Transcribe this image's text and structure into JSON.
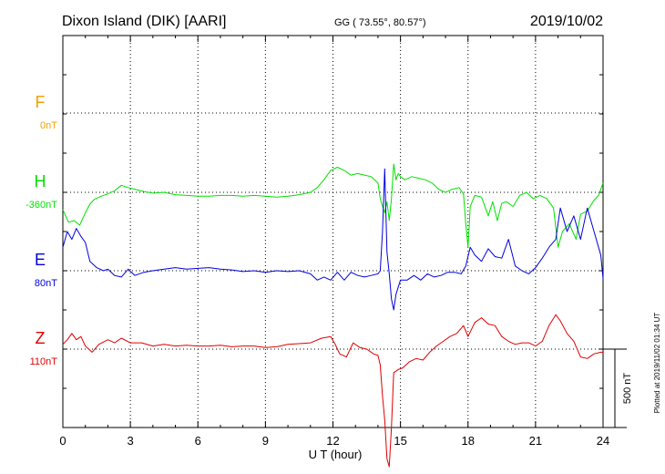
{
  "header": {
    "station": "Dixon Island (DIK)  [AARI]",
    "coords": "GG ( 73.55°,  80.57°)",
    "date": "2019/10/02"
  },
  "footer": {
    "xlabel": "U T (hour)",
    "plotted": "Plotted at 2019/11/02 01:34 UT"
  },
  "scale": {
    "label": "500 nT",
    "value_nT": 500
  },
  "chart_data": {
    "type": "line",
    "title": "Dixon Island (DIK)  [AARI]",
    "xlabel": "U T (hour)",
    "ylabel": "",
    "xlim": [
      0,
      24
    ],
    "xticks": [
      "0",
      "3",
      "6",
      "9",
      "12",
      "15",
      "18",
      "21",
      "24"
    ],
    "grid": true,
    "series": [
      {
        "name": "F",
        "baseline_label": "0nT",
        "color": "#f0a000",
        "x": [],
        "y": []
      },
      {
        "name": "H",
        "baseline_label": "-360nT",
        "color": "#00e000",
        "x": [
          0,
          0.25,
          0.5,
          0.75,
          1,
          1.2,
          1.4,
          1.7,
          2,
          2.3,
          2.6,
          2.9,
          3.2,
          3.6,
          4,
          4.5,
          5,
          5.5,
          6,
          6.5,
          7,
          7.5,
          8,
          8.5,
          9,
          9.5,
          10,
          10.5,
          11,
          11.3,
          11.6,
          11.9,
          12.2,
          12.5,
          12.8,
          13.1,
          13.4,
          13.7,
          14,
          14.1,
          14.2,
          14.3,
          14.4,
          14.5,
          14.6,
          14.7,
          14.8,
          14.9,
          15,
          15.2,
          15.5,
          15.8,
          16.1,
          16.4,
          16.7,
          17,
          17.3,
          17.6,
          17.8,
          17.9,
          18,
          18.1,
          18.3,
          18.6,
          18.9,
          19.1,
          19.3,
          19.5,
          19.7,
          20,
          20.3,
          20.6,
          20.9,
          21.2,
          21.5,
          21.8,
          22,
          22.2,
          22.5,
          22.8,
          23,
          23.3,
          23.6,
          23.8,
          24
        ],
        "y": [
          -110,
          -190,
          -180,
          -210,
          -130,
          -75,
          -45,
          -25,
          -10,
          10,
          45,
          30,
          20,
          5,
          -5,
          0,
          -15,
          -20,
          -25,
          -25,
          -20,
          -20,
          -25,
          -20,
          -25,
          -30,
          -25,
          -15,
          0,
          30,
          80,
          140,
          160,
          140,
          110,
          120,
          110,
          100,
          60,
          -40,
          -90,
          -130,
          -60,
          -180,
          -40,
          180,
          80,
          120,
          100,
          80,
          100,
          90,
          80,
          60,
          20,
          0,
          20,
          30,
          -10,
          -200,
          -350,
          -90,
          -20,
          -30,
          -150,
          -60,
          -180,
          -70,
          -60,
          -90,
          -20,
          0,
          -40,
          -20,
          -40,
          -100,
          -350,
          -250,
          -200,
          -300,
          -140,
          -120,
          -50,
          -20,
          60
        ],
        "ylim": [
          -700,
          700
        ]
      },
      {
        "name": "E",
        "baseline_label": "80nT",
        "color": "#0000e0",
        "x": [
          0,
          0.2,
          0.4,
          0.6,
          0.8,
          1,
          1.2,
          1.5,
          1.8,
          2,
          2.3,
          2.6,
          2.9,
          3.2,
          3.6,
          4,
          4.5,
          5,
          5.5,
          6,
          6.5,
          7,
          7.5,
          8,
          8.5,
          9,
          9.5,
          10,
          10.5,
          11,
          11.3,
          11.6,
          11.9,
          12.2,
          12.5,
          12.8,
          13.1,
          13.4,
          13.7,
          14,
          14.1,
          14.2,
          14.3,
          14.4,
          14.5,
          14.6,
          14.7,
          14.8,
          15,
          15.3,
          15.6,
          15.9,
          16.2,
          16.5,
          16.8,
          17.1,
          17.4,
          17.7,
          17.9,
          18.1,
          18.3,
          18.6,
          18.9,
          19.2,
          19.5,
          19.8,
          20.1,
          20.4,
          20.7,
          21,
          21.3,
          21.6,
          21.9,
          22.1,
          22.4,
          22.7,
          23,
          23.3,
          23.6,
          23.9,
          24
        ],
        "y": [
          150,
          250,
          200,
          270,
          220,
          180,
          60,
          20,
          0,
          10,
          -30,
          -40,
          10,
          -30,
          -10,
          0,
          10,
          20,
          10,
          15,
          20,
          10,
          5,
          -5,
          0,
          -10,
          0,
          -5,
          0,
          -20,
          -60,
          -40,
          -60,
          -10,
          -60,
          -10,
          -30,
          -40,
          -30,
          -20,
          0,
          250,
          650,
          120,
          -20,
          -180,
          -250,
          -150,
          -60,
          -60,
          -30,
          -60,
          -20,
          -40,
          -30,
          -10,
          -10,
          -20,
          30,
          150,
          100,
          60,
          140,
          90,
          80,
          200,
          30,
          0,
          -20,
          20,
          80,
          150,
          200,
          400,
          250,
          350,
          200,
          400,
          250,
          100,
          -50
        ],
        "ylim": [
          -700,
          700
        ]
      },
      {
        "name": "Z",
        "baseline_label": "110nT",
        "color": "#e00000",
        "x": [
          0,
          0.2,
          0.4,
          0.6,
          0.8,
          1,
          1.3,
          1.6,
          2,
          2.3,
          2.6,
          3,
          3.5,
          4,
          4.5,
          5,
          5.5,
          6,
          6.5,
          7,
          7.5,
          8,
          8.5,
          9,
          9.5,
          10,
          10.5,
          11,
          11.5,
          11.9,
          12.1,
          12.3,
          12.6,
          12.9,
          13.2,
          13.5,
          13.8,
          14,
          14.1,
          14.2,
          14.3,
          14.4,
          14.5,
          14.6,
          14.7,
          14.9,
          15.1,
          15.4,
          15.7,
          16,
          16.3,
          16.6,
          16.9,
          17.2,
          17.5,
          17.8,
          18,
          18.3,
          18.6,
          18.9,
          19.2,
          19.5,
          19.8,
          20.1,
          20.4,
          20.7,
          21,
          21.3,
          21.6,
          21.9,
          22.1,
          22.4,
          22.7,
          23,
          23.3,
          23.6,
          23.9,
          24
        ],
        "y": [
          30,
          60,
          100,
          60,
          80,
          20,
          -20,
          30,
          60,
          40,
          70,
          40,
          40,
          20,
          30,
          20,
          25,
          20,
          20,
          25,
          15,
          20,
          20,
          10,
          15,
          30,
          35,
          40,
          70,
          80,
          30,
          -30,
          -50,
          40,
          10,
          0,
          -30,
          -40,
          -100,
          -300,
          -450,
          -700,
          -750,
          -500,
          -150,
          -130,
          -120,
          -80,
          -60,
          -70,
          -20,
          20,
          50,
          80,
          100,
          150,
          80,
          170,
          200,
          160,
          150,
          80,
          50,
          30,
          40,
          40,
          20,
          50,
          150,
          220,
          180,
          100,
          50,
          -50,
          -60,
          -30,
          -20,
          -20
        ],
        "ylim": [
          -700,
          700
        ]
      }
    ]
  }
}
